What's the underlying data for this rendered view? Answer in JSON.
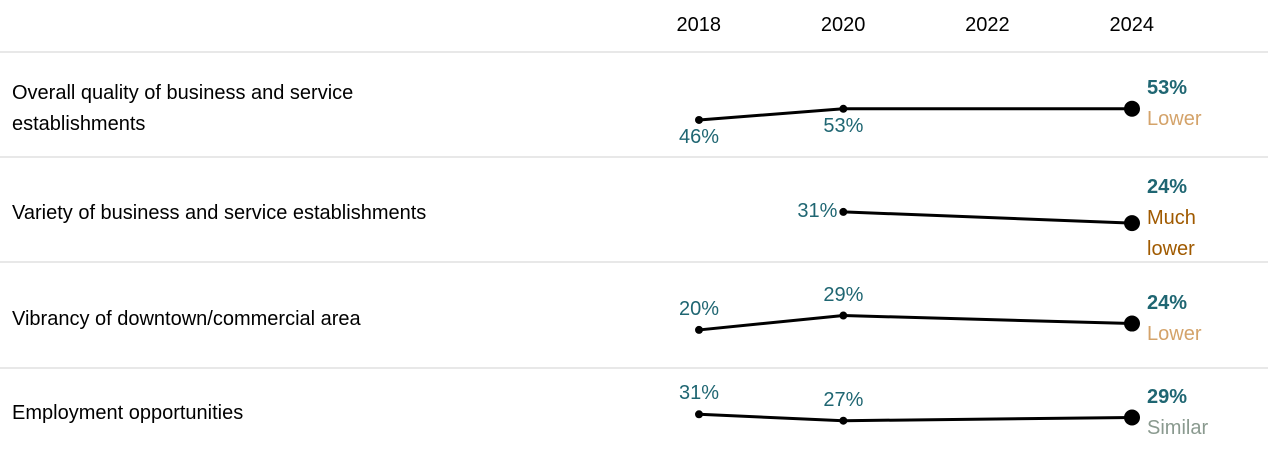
{
  "chart_data": {
    "type": "line",
    "xlim": [
      2018,
      2024
    ],
    "xticks": [
      2018,
      2020,
      2022,
      2024
    ],
    "x": [
      2018,
      2020,
      2024
    ],
    "value_color": "#1f6672",
    "line_color": "#000000",
    "rows": [
      {
        "name": "Overall quality of business and service establishments",
        "values": [
          46,
          53,
          53
        ],
        "value_labels": [
          "46%",
          "53%",
          "53%"
        ],
        "comparison": "Lower",
        "comparison_color": "#d4a36a"
      },
      {
        "name": "Variety of business and service establishments",
        "values": [
          null,
          31,
          24
        ],
        "value_labels": [
          null,
          "31%",
          "24%"
        ],
        "comparison": "Much lower",
        "comparison_color": "#a05a00"
      },
      {
        "name": "Vibrancy of downtown/commercial area",
        "values": [
          20,
          29,
          24
        ],
        "value_labels": [
          "20%",
          "29%",
          "24%"
        ],
        "comparison": "Lower",
        "comparison_color": "#d4a36a"
      },
      {
        "name": "Employment opportunities",
        "values": [
          31,
          27,
          29
        ],
        "value_labels": [
          "31%",
          "27%",
          "29%"
        ],
        "comparison": "Similar",
        "comparison_color": "#8a9a8f"
      }
    ]
  }
}
